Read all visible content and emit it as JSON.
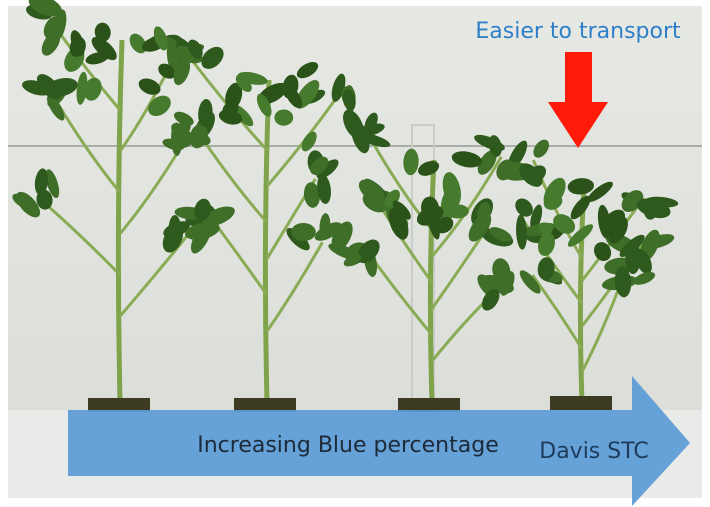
{
  "annotations": {
    "top": "Easier to transport",
    "arrow": "Increasing Blue percentage",
    "credit": "Davis STC"
  }
}
